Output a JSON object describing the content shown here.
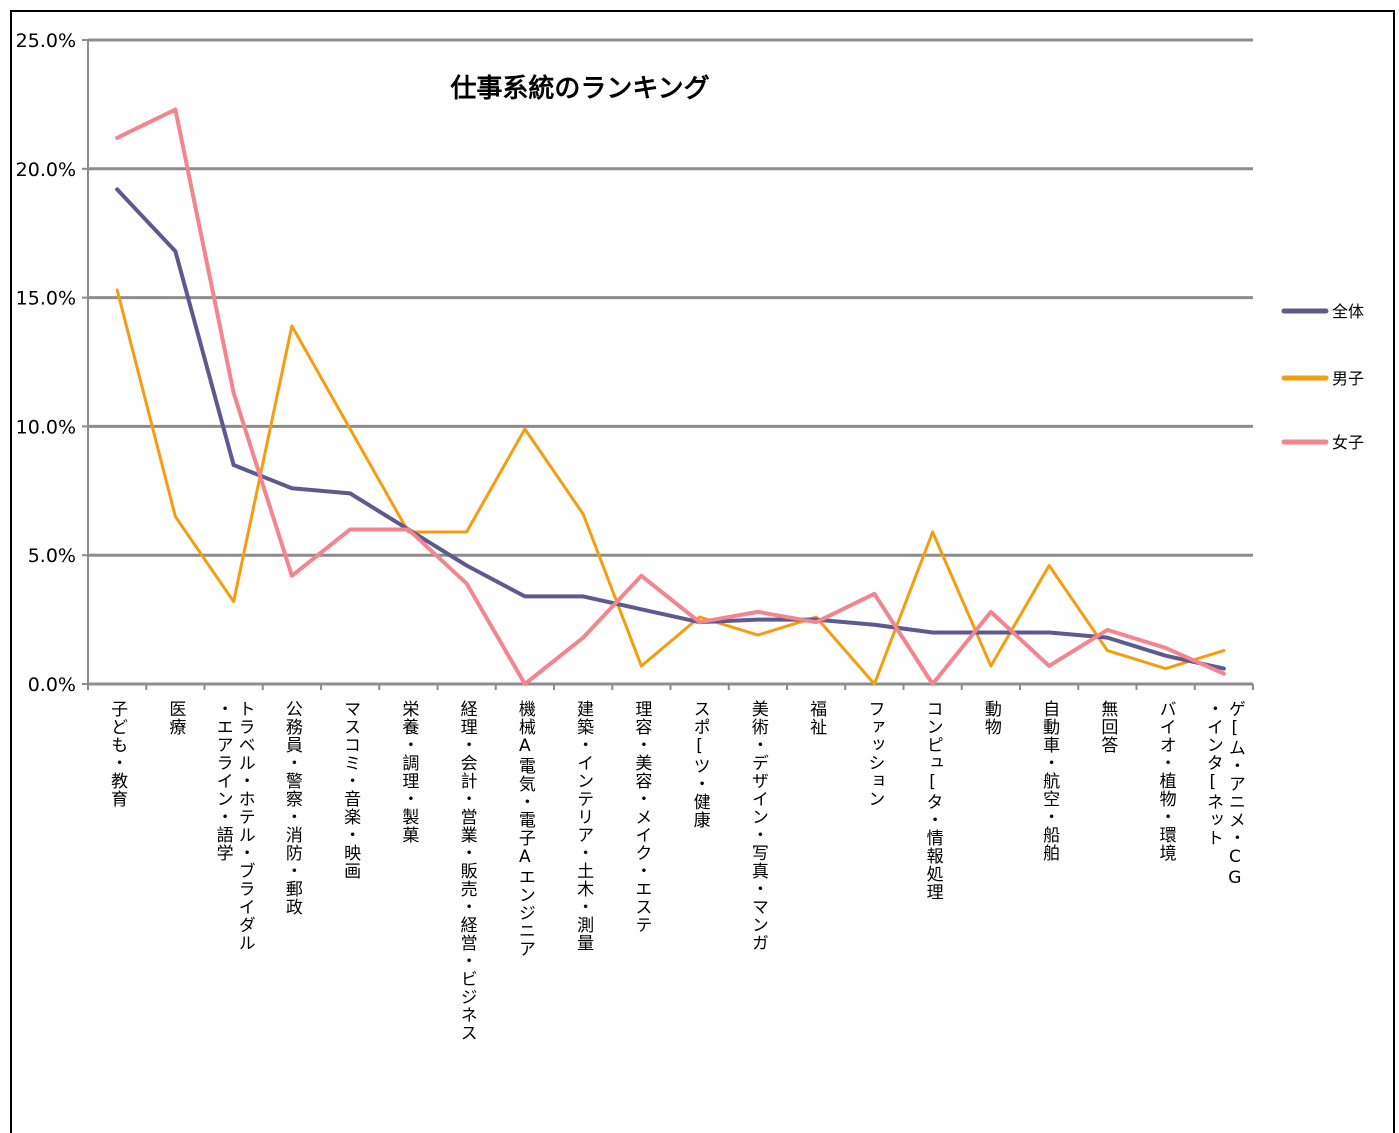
{
  "chart_data": {
    "type": "line",
    "title": "仕事系統のランキング",
    "ylim": [
      0,
      25
    ],
    "yticks": [
      "0.0%",
      "5.0%",
      "10.0%",
      "15.0%",
      "20.0%",
      "25.0%"
    ],
    "grid": true,
    "legend_position": "right",
    "categories": [
      [
        "子ども・教育"
      ],
      [
        "医療"
      ],
      [
        "トラベル・ホテル・ブライダル",
        "・エアライン・語学"
      ],
      [
        "公務員・警察・消防・郵政"
      ],
      [
        "マスコミ・音楽・映画"
      ],
      [
        "栄養・調理・製菓"
      ],
      [
        "経理・会計・営業・販売・経営・ビジネス"
      ],
      [
        "機械A電気・電子Aエンジニア"
      ],
      [
        "建築・インテリア・土木・測量"
      ],
      [
        "理容・美容・メイク・エステ"
      ],
      [
        "スポ[ツ・健康"
      ],
      [
        "美術・デザイン・写真・マンガ"
      ],
      [
        "福祉"
      ],
      [
        "ファッション"
      ],
      [
        "コンピュ[タ・情報処理"
      ],
      [
        "動物"
      ],
      [
        "自動車・航空・船舶"
      ],
      [
        "無回答"
      ],
      [
        "バイオ・植物・環境"
      ],
      [
        "ゲ[ム・アニメ・CG",
        "・インタ[ネット"
      ]
    ],
    "series": [
      {
        "name": "全体",
        "color": "#5c5a8f",
        "values": [
          19.2,
          16.8,
          8.5,
          7.6,
          7.4,
          6.0,
          4.6,
          3.4,
          3.4,
          2.9,
          2.4,
          2.5,
          2.5,
          2.3,
          2.0,
          2.0,
          2.0,
          1.8,
          1.1,
          0.6
        ]
      },
      {
        "name": "男子",
        "color": "#f59d0e",
        "values": [
          15.3,
          6.5,
          3.2,
          13.9,
          9.9,
          5.9,
          5.9,
          9.9,
          6.6,
          0.7,
          2.6,
          1.9,
          2.6,
          0.0,
          5.9,
          0.7,
          4.6,
          1.3,
          0.6,
          1.3
        ]
      },
      {
        "name": "女子",
        "color": "#f4848e",
        "values": [
          21.2,
          22.3,
          11.3,
          4.2,
          6.0,
          6.0,
          3.9,
          0.0,
          1.8,
          4.2,
          2.4,
          2.8,
          2.4,
          3.5,
          0.0,
          2.8,
          0.7,
          2.1,
          1.4,
          0.4
        ]
      }
    ]
  }
}
